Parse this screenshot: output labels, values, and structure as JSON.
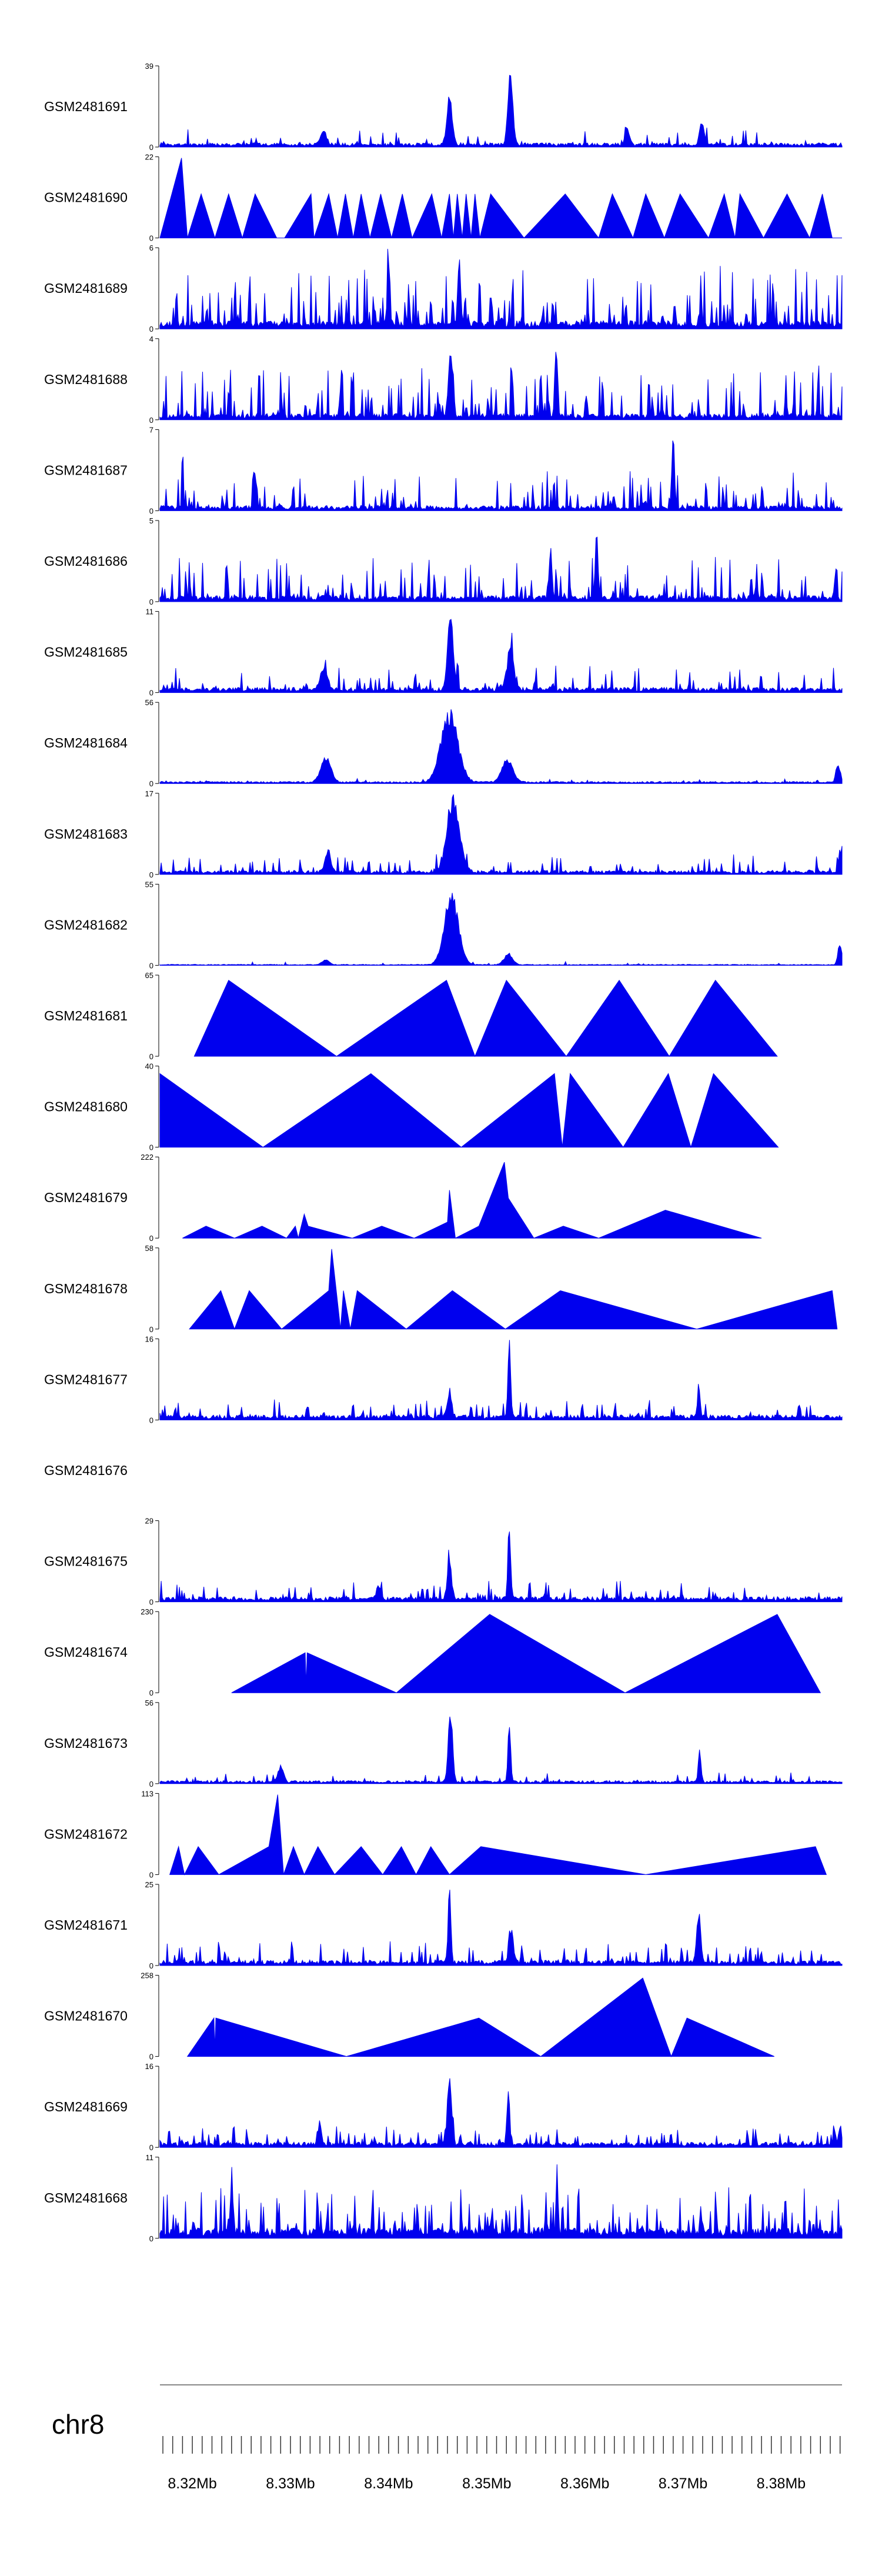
{
  "chart_data": {
    "type": "area",
    "title": "",
    "chromosome": "chr8",
    "fill_color": "#0000ee",
    "axis": {
      "xmin": 8.3167,
      "xmax": 8.3862,
      "unit": "Mb",
      "labels": [
        {
          "pos": 8.32,
          "text": "8.32Mb"
        },
        {
          "pos": 8.33,
          "text": "8.33Mb"
        },
        {
          "pos": 8.34,
          "text": "8.34Mb"
        },
        {
          "pos": 8.35,
          "text": "8.35Mb"
        },
        {
          "pos": 8.36,
          "text": "8.36Mb"
        },
        {
          "pos": 8.37,
          "text": "8.37Mb"
        },
        {
          "pos": 8.38,
          "text": "8.38Mb"
        }
      ]
    },
    "tracks": [
      {
        "name": "GSM2481691",
        "ymax": 39,
        "kind": "noisy",
        "seed": 11,
        "level": 0.04,
        "spike_p": 0.12,
        "spike_amp": 0.18,
        "peaks": [
          [
            8.3462,
            0.62,
            0.0004
          ],
          [
            8.3524,
            1.0,
            0.00035
          ],
          [
            8.3643,
            0.25,
            0.0003
          ],
          [
            8.3719,
            0.35,
            0.0003
          ],
          [
            8.3334,
            0.2,
            0.0004
          ]
        ]
      },
      {
        "name": "GSM2481690",
        "ymax": 22,
        "kind": "tri",
        "points": [
          [
            8.3167,
            0.0
          ],
          [
            8.3189,
            1.0
          ],
          [
            8.3195,
            0.0
          ],
          [
            8.3209,
            0.55
          ],
          [
            8.3223,
            0.0
          ],
          [
            8.3237,
            0.55
          ],
          [
            8.3251,
            0.0
          ],
          [
            8.3264,
            0.55
          ],
          [
            8.3286,
            0.0
          ],
          [
            8.3294,
            0.0
          ],
          [
            8.3321,
            0.55
          ],
          [
            8.3324,
            0.0
          ],
          [
            8.3339,
            0.55
          ],
          [
            8.3348,
            0.0
          ],
          [
            8.3356,
            0.55
          ],
          [
            8.3364,
            0.0
          ],
          [
            8.3372,
            0.55
          ],
          [
            8.3381,
            0.0
          ],
          [
            8.3392,
            0.55
          ],
          [
            8.3403,
            0.0
          ],
          [
            8.3414,
            0.55
          ],
          [
            8.3424,
            0.0
          ],
          [
            8.3444,
            0.55
          ],
          [
            8.3454,
            0.0
          ],
          [
            8.3462,
            0.55
          ],
          [
            8.3466,
            0.0
          ],
          [
            8.347,
            0.55
          ],
          [
            8.3475,
            0.0
          ],
          [
            8.3479,
            0.55
          ],
          [
            8.3484,
            0.0
          ],
          [
            8.3488,
            0.55
          ],
          [
            8.3493,
            0.0
          ],
          [
            8.3504,
            0.55
          ],
          [
            8.3538,
            0.0
          ],
          [
            8.358,
            0.55
          ],
          [
            8.3614,
            0.0
          ],
          [
            8.3628,
            0.55
          ],
          [
            8.3649,
            0.0
          ],
          [
            8.3662,
            0.55
          ],
          [
            8.3681,
            0.0
          ],
          [
            8.3697,
            0.55
          ],
          [
            8.3726,
            0.0
          ],
          [
            8.3742,
            0.55
          ],
          [
            8.3753,
            0.0
          ],
          [
            8.3758,
            0.55
          ],
          [
            8.3782,
            0.0
          ],
          [
            8.3806,
            0.55
          ],
          [
            8.3829,
            0.0
          ],
          [
            8.3842,
            0.55
          ],
          [
            8.3852,
            0.0
          ],
          [
            8.3862,
            0.0
          ]
        ]
      },
      {
        "name": "GSM2481689",
        "ymax": 6,
        "kind": "noisy",
        "seed": 23,
        "level": 0.08,
        "spike_p": 0.33,
        "spike_amp": 0.7,
        "peaks": [
          [
            8.3472,
            0.95,
            0.0002
          ],
          [
            8.34,
            0.8,
            0.0002
          ]
        ]
      },
      {
        "name": "GSM2481688",
        "ymax": 4,
        "kind": "noisy",
        "seed": 37,
        "level": 0.06,
        "spike_p": 0.28,
        "spike_amp": 0.6,
        "peaks": [
          [
            8.3463,
            0.95,
            0.0003
          ],
          [
            8.3571,
            0.9,
            0.0002
          ]
        ]
      },
      {
        "name": "GSM2481687",
        "ymax": 7,
        "kind": "noisy",
        "seed": 41,
        "level": 0.05,
        "spike_p": 0.22,
        "spike_amp": 0.45,
        "peaks": [
          [
            8.319,
            0.9,
            0.0001
          ],
          [
            8.369,
            0.95,
            0.0002
          ],
          [
            8.3262,
            0.7,
            0.0001
          ]
        ]
      },
      {
        "name": "GSM2481686",
        "ymax": 5,
        "kind": "noisy",
        "seed": 53,
        "level": 0.06,
        "spike_p": 0.26,
        "spike_amp": 0.5,
        "peaks": [
          [
            8.3612,
            0.95,
            0.0002
          ],
          [
            8.3565,
            0.75,
            0.0002
          ]
        ]
      },
      {
        "name": "GSM2481685",
        "ymax": 11,
        "kind": "noisy",
        "seed": 61,
        "level": 0.05,
        "spike_p": 0.18,
        "spike_amp": 0.3,
        "peaks": [
          [
            8.3463,
            1.0,
            0.0004
          ],
          [
            8.3524,
            0.55,
            0.0005
          ],
          [
            8.3334,
            0.3,
            0.0005
          ]
        ]
      },
      {
        "name": "GSM2481684",
        "ymax": 56,
        "kind": "noisy",
        "seed": 71,
        "level": 0.02,
        "spike_p": 0.05,
        "spike_amp": 0.04,
        "peaks": [
          [
            8.3336,
            0.35,
            0.0007
          ],
          [
            8.3462,
            0.95,
            0.0012
          ],
          [
            8.3521,
            0.3,
            0.0008
          ],
          [
            8.3858,
            0.25,
            0.0003
          ]
        ]
      },
      {
        "name": "GSM2481683",
        "ymax": 17,
        "kind": "noisy",
        "seed": 83,
        "level": 0.04,
        "spike_p": 0.14,
        "spike_amp": 0.2,
        "peaks": [
          [
            8.3466,
            1.0,
            0.0009
          ],
          [
            8.3338,
            0.3,
            0.0004
          ],
          [
            8.386,
            0.3,
            0.0002
          ]
        ]
      },
      {
        "name": "GSM2481682",
        "ymax": 55,
        "kind": "noisy",
        "seed": 97,
        "level": 0.01,
        "spike_p": 0.04,
        "spike_amp": 0.04,
        "peaks": [
          [
            8.3464,
            0.95,
            0.001
          ],
          [
            8.3522,
            0.15,
            0.0006
          ],
          [
            8.3336,
            0.07,
            0.0005
          ],
          [
            8.386,
            0.3,
            0.0003
          ]
        ]
      },
      {
        "name": "GSM2481681",
        "ymax": 65,
        "kind": "tri",
        "points": [
          [
            8.3202,
            0.0
          ],
          [
            8.3237,
            0.95
          ],
          [
            8.3347,
            0.0
          ],
          [
            8.3459,
            0.95
          ],
          [
            8.3488,
            0.0
          ],
          [
            8.352,
            0.95
          ],
          [
            8.3581,
            0.0
          ],
          [
            8.3635,
            0.95
          ],
          [
            8.3686,
            0.0
          ],
          [
            8.3733,
            0.95
          ],
          [
            8.3796,
            0.0
          ]
        ]
      },
      {
        "name": "GSM2481680",
        "ymax": 40,
        "kind": "tri",
        "points": [
          [
            8.3167,
            0.0
          ],
          [
            8.3167,
            0.92
          ],
          [
            8.3272,
            0.0
          ],
          [
            8.3382,
            0.92
          ],
          [
            8.3474,
            0.0
          ],
          [
            8.3569,
            0.92
          ],
          [
            8.3577,
            0.0
          ],
          [
            8.3585,
            0.92
          ],
          [
            8.3639,
            0.0
          ],
          [
            8.3685,
            0.92
          ],
          [
            8.3708,
            0.0
          ],
          [
            8.3731,
            0.92
          ],
          [
            8.3797,
            0.0
          ]
        ]
      },
      {
        "name": "GSM2481679",
        "ymax": 222,
        "kind": "tri",
        "points": [
          [
            8.319,
            0.0
          ],
          [
            8.3214,
            0.15
          ],
          [
            8.3243,
            0.0
          ],
          [
            8.3271,
            0.15
          ],
          [
            8.3296,
            0.0
          ],
          [
            8.3305,
            0.15
          ],
          [
            8.3308,
            0.0
          ],
          [
            8.3314,
            0.3
          ],
          [
            8.3318,
            0.15
          ],
          [
            8.3363,
            0.0
          ],
          [
            8.3393,
            0.15
          ],
          [
            8.3426,
            0.0
          ],
          [
            8.346,
            0.2
          ],
          [
            8.3462,
            0.6
          ],
          [
            8.3468,
            0.0
          ],
          [
            8.3492,
            0.15
          ],
          [
            8.3518,
            0.95
          ],
          [
            8.3522,
            0.5
          ],
          [
            8.3548,
            0.0
          ],
          [
            8.3578,
            0.15
          ],
          [
            8.3614,
            0.0
          ],
          [
            8.3682,
            0.35
          ],
          [
            8.378,
            0.0
          ]
        ]
      },
      {
        "name": "GSM2481678",
        "ymax": 58,
        "kind": "tri",
        "points": [
          [
            8.3197,
            0.0
          ],
          [
            8.3229,
            0.48
          ],
          [
            8.3243,
            0.0
          ],
          [
            8.3258,
            0.48
          ],
          [
            8.3291,
            0.0
          ],
          [
            8.3339,
            0.48
          ],
          [
            8.3342,
            1.0
          ],
          [
            8.3351,
            0.0
          ],
          [
            8.3354,
            0.48
          ],
          [
            8.3361,
            0.0
          ],
          [
            8.3368,
            0.48
          ],
          [
            8.3418,
            0.0
          ],
          [
            8.3465,
            0.48
          ],
          [
            8.3519,
            0.0
          ],
          [
            8.3575,
            0.48
          ],
          [
            8.3714,
            0.0
          ],
          [
            8.3852,
            0.48
          ],
          [
            8.3857,
            0.0
          ]
        ]
      },
      {
        "name": "GSM2481677",
        "ymax": 16,
        "kind": "noisy",
        "seed": 109,
        "level": 0.05,
        "spike_p": 0.17,
        "spike_amp": 0.2,
        "peaks": [
          [
            8.3523,
            1.0,
            0.0002
          ],
          [
            8.3462,
            0.35,
            0.0003
          ],
          [
            8.3716,
            0.45,
            0.0002
          ]
        ]
      },
      {
        "name": "GSM2481676",
        "ymax": null,
        "kind": "empty"
      },
      {
        "name": "GSM2481675",
        "ymax": 29,
        "kind": "noisy",
        "seed": 127,
        "level": 0.05,
        "spike_p": 0.16,
        "spike_amp": 0.22,
        "peaks": [
          [
            8.3462,
            0.55,
            0.0003
          ],
          [
            8.3523,
            1.0,
            0.0002
          ],
          [
            8.339,
            0.2,
            0.0003
          ]
        ]
      },
      {
        "name": "GSM2481674",
        "ymax": 230,
        "kind": "tri",
        "points": [
          [
            8.324,
            0.0
          ],
          [
            8.3315,
            0.5
          ],
          [
            8.3316,
            0.1
          ],
          [
            8.3317,
            0.5
          ],
          [
            8.3408,
            0.0
          ],
          [
            8.3503,
            0.98
          ],
          [
            8.3641,
            0.0
          ],
          [
            8.3796,
            0.98
          ],
          [
            8.384,
            0.0
          ]
        ]
      },
      {
        "name": "GSM2481673",
        "ymax": 56,
        "kind": "noisy",
        "seed": 131,
        "level": 0.03,
        "spike_p": 0.12,
        "spike_amp": 0.12,
        "peaks": [
          [
            8.3463,
            0.95,
            0.0003
          ],
          [
            8.3523,
            0.75,
            0.0002
          ],
          [
            8.3717,
            0.45,
            0.0002
          ],
          [
            8.329,
            0.2,
            0.0004
          ]
        ]
      },
      {
        "name": "GSM2481672",
        "ymax": 113,
        "kind": "tri",
        "points": [
          [
            8.3177,
            0.0
          ],
          [
            8.3186,
            0.35
          ],
          [
            8.3192,
            0.0
          ],
          [
            8.3206,
            0.35
          ],
          [
            8.3227,
            0.0
          ],
          [
            8.3278,
            0.35
          ],
          [
            8.3287,
            1.0
          ],
          [
            8.3293,
            0.0
          ],
          [
            8.3303,
            0.35
          ],
          [
            8.3314,
            0.0
          ],
          [
            8.3328,
            0.35
          ],
          [
            8.3345,
            0.0
          ],
          [
            8.3372,
            0.35
          ],
          [
            8.3394,
            0.0
          ],
          [
            8.3413,
            0.35
          ],
          [
            8.3428,
            0.0
          ],
          [
            8.3443,
            0.35
          ],
          [
            8.3462,
            0.0
          ],
          [
            8.3494,
            0.35
          ],
          [
            8.3662,
            0.0
          ],
          [
            8.3835,
            0.35
          ],
          [
            8.3846,
            0.0
          ]
        ]
      },
      {
        "name": "GSM2481671",
        "ymax": 25,
        "kind": "noisy",
        "seed": 149,
        "level": 0.05,
        "spike_p": 0.22,
        "spike_amp": 0.25,
        "peaks": [
          [
            8.3462,
            1.0,
            0.0002
          ],
          [
            8.3716,
            0.7,
            0.0003
          ],
          [
            8.3525,
            0.45,
            0.0003
          ]
        ]
      },
      {
        "name": "GSM2481670",
        "ymax": 258,
        "kind": "tri",
        "points": [
          [
            8.3195,
            0.0
          ],
          [
            8.3222,
            0.48
          ],
          [
            8.3223,
            0.1
          ],
          [
            8.3224,
            0.48
          ],
          [
            8.3357,
            0.0
          ],
          [
            8.3492,
            0.48
          ],
          [
            8.3555,
            0.0
          ],
          [
            8.3659,
            0.98
          ],
          [
            8.3688,
            0.0
          ],
          [
            8.3704,
            0.48
          ],
          [
            8.3793,
            0.0
          ]
        ]
      },
      {
        "name": "GSM2481669",
        "ymax": 16,
        "kind": "noisy",
        "seed": 163,
        "level": 0.05,
        "spike_p": 0.2,
        "spike_amp": 0.22,
        "peaks": [
          [
            8.3462,
            0.95,
            0.0003
          ],
          [
            8.3522,
            0.75,
            0.0002
          ],
          [
            8.333,
            0.35,
            0.0002
          ],
          [
            8.386,
            0.25,
            0.0002
          ]
        ]
      },
      {
        "name": "GSM2481668",
        "ymax": 11,
        "kind": "noisy",
        "seed": 179,
        "level": 0.1,
        "spike_p": 0.3,
        "spike_amp": 0.55,
        "peaks": [
          [
            8.3572,
            0.95,
            0.0001
          ],
          [
            8.324,
            0.65,
            0.0002
          ]
        ]
      }
    ]
  }
}
